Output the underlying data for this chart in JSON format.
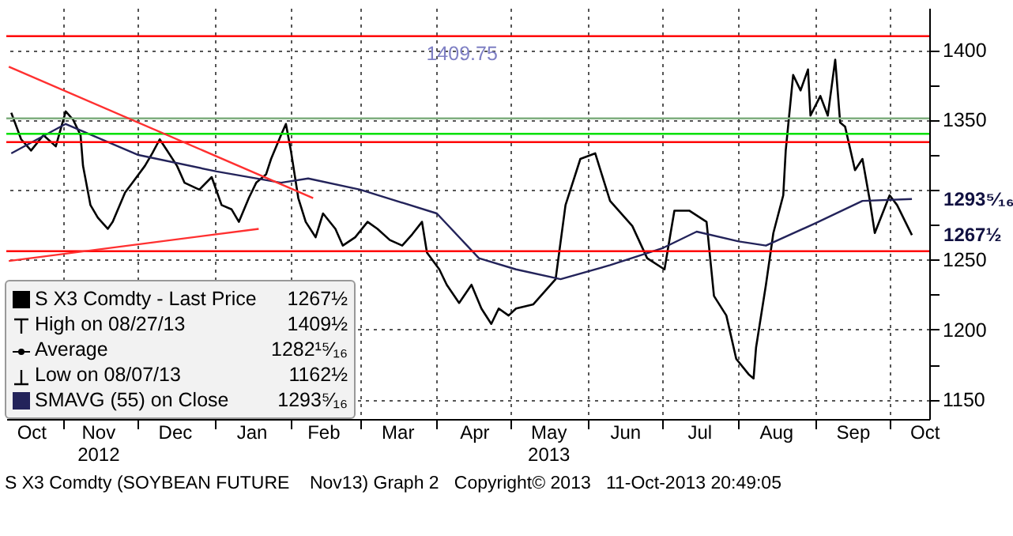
{
  "chart_data": {
    "type": "line",
    "xlim": [
      "2012-10-09",
      "2013-10-17"
    ],
    "xticks": [
      {
        "value": "2012-10-19",
        "label": "Oct"
      },
      {
        "value": "2012-11-01",
        "label": null
      },
      {
        "value": "2012-11-15",
        "label": "Nov\n2012"
      },
      {
        "value": "2012-12-01",
        "label": null
      },
      {
        "value": "2012-12-16",
        "label": "Dec"
      },
      {
        "value": "2013-01-01",
        "label": null
      },
      {
        "value": "2013-01-16",
        "label": "Jan"
      },
      {
        "value": "2013-02-01",
        "label": null
      },
      {
        "value": "2013-02-14",
        "label": "Feb"
      },
      {
        "value": "2013-03-01",
        "label": null
      },
      {
        "value": "2013-03-16",
        "label": "Mar"
      },
      {
        "value": "2013-04-01",
        "label": null
      },
      {
        "value": "2013-04-16",
        "label": "Apr"
      },
      {
        "value": "2013-05-01",
        "label": null
      },
      {
        "value": "2013-05-16",
        "label": "May\n2013"
      },
      {
        "value": "2013-06-01",
        "label": null
      },
      {
        "value": "2013-06-16",
        "label": "Jun"
      },
      {
        "value": "2013-07-01",
        "label": null
      },
      {
        "value": "2013-07-16",
        "label": "Jul"
      },
      {
        "value": "2013-08-01",
        "label": null
      },
      {
        "value": "2013-08-16",
        "label": "Aug"
      },
      {
        "value": "2013-09-01",
        "label": null
      },
      {
        "value": "2013-09-16",
        "label": "Sep"
      },
      {
        "value": "2013-10-01",
        "label": null
      },
      {
        "value": "2013-10-15",
        "label": "Oct"
      }
    ],
    "ylim": [
      1136,
      1430
    ],
    "yticks": [
      1150,
      {
        "value": 1175,
        "label": null
      },
      1200,
      {
        "value": 1225,
        "label": null
      },
      1250,
      {
        "value": 1275,
        "label": null
      },
      {
        "value": 1300,
        "label": null
      },
      {
        "value": 1325,
        "label": null
      },
      1350,
      {
        "value": 1375,
        "label": null
      },
      1400
    ],
    "grid": true,
    "legend": "bottom left",
    "series": [
      {
        "name": "S X3 Comdty - Last Price",
        "color": "#000000",
        "x": [
          "2012-10-11",
          "2012-10-15",
          "2012-10-19",
          "2012-10-24",
          "2012-10-29",
          "2012-11-02",
          "2012-11-05",
          "2012-11-08",
          "2012-11-09",
          "2012-11-12",
          "2012-11-15",
          "2012-11-19",
          "2012-11-21",
          "2012-11-26",
          "2012-11-29",
          "2012-12-04",
          "2012-12-07",
          "2012-12-10",
          "2012-12-13",
          "2012-12-17",
          "2012-12-20",
          "2012-12-26",
          "2012-12-31",
          "2013-01-04",
          "2013-01-08",
          "2013-01-11",
          "2013-01-15",
          "2013-01-18",
          "2013-01-22",
          "2013-01-24",
          "2013-01-28",
          "2013-01-30",
          "2013-02-01",
          "2013-02-04",
          "2013-02-07",
          "2013-02-11",
          "2013-02-14",
          "2013-02-19",
          "2013-02-22",
          "2013-02-27",
          "2013-03-04",
          "2013-03-08",
          "2013-03-13",
          "2013-03-18",
          "2013-03-22",
          "2013-03-26",
          "2013-03-28",
          "2013-04-02",
          "2013-04-05",
          "2013-04-10",
          "2013-04-15",
          "2013-04-19",
          "2013-04-23",
          "2013-04-26",
          "2013-04-30",
          "2013-05-03",
          "2013-05-10",
          "2013-05-19",
          "2013-05-23",
          "2013-05-29",
          "2013-06-04",
          "2013-06-10",
          "2013-06-19",
          "2013-06-25",
          "2013-07-02",
          "2013-07-06",
          "2013-07-12",
          "2013-07-19",
          "2013-07-22",
          "2013-07-27",
          "2013-07-31",
          "2013-08-05",
          "2013-08-07",
          "2013-08-08",
          "2013-08-12",
          "2013-08-15",
          "2013-08-19",
          "2013-08-20",
          "2013-08-23",
          "2013-08-26",
          "2013-08-29",
          "2013-08-30",
          "2013-09-03",
          "2013-09-06",
          "2013-09-09",
          "2013-09-11",
          "2013-09-13",
          "2013-09-17",
          "2013-09-20",
          "2013-09-23",
          "2013-09-25",
          "2013-10-01",
          "2013-10-04",
          "2013-10-10"
        ],
        "values": [
          1355,
          1336,
          1328,
          1339,
          1331,
          1356,
          1350,
          1339,
          1317,
          1289,
          1280,
          1272,
          1277,
          1298,
          1305,
          1317,
          1326,
          1336,
          1328,
          1317,
          1305,
          1300,
          1309,
          1289,
          1286,
          1277,
          1294,
          1305,
          1311,
          1322,
          1339,
          1347,
          1328,
          1294,
          1277,
          1266,
          1283,
          1272,
          1260,
          1266,
          1277,
          1272,
          1264,
          1260,
          1268,
          1277,
          1255,
          1243,
          1232,
          1219,
          1232,
          1215,
          1204,
          1215,
          1210,
          1215,
          1218,
          1236,
          1289,
          1322,
          1326,
          1292,
          1274,
          1251,
          1243,
          1285,
          1285,
          1277,
          1224,
          1210,
          1179,
          1168,
          1165,
          1187,
          1232,
          1269,
          1296,
          1328,
          1382,
          1371,
          1386,
          1353,
          1367,
          1353,
          1393,
          1348,
          1345,
          1314,
          1322,
          1292,
          1269,
          1296,
          1289,
          1267.5
        ]
      },
      {
        "name": "SMAVG (55) on Close",
        "color": "#23235a",
        "x": [
          "2012-10-11",
          "2012-11-02",
          "2012-12-01",
          "2013-01-02",
          "2013-01-28",
          "2013-02-08",
          "2013-03-01",
          "2013-04-01",
          "2013-04-18",
          "2013-05-03",
          "2013-05-21",
          "2013-06-10",
          "2013-07-01",
          "2013-07-15",
          "2013-08-01",
          "2013-08-12",
          "2013-09-01",
          "2013-09-20",
          "2013-10-10"
        ],
        "values": [
          1326,
          1347,
          1325,
          1313,
          1305,
          1308,
          1300,
          1283,
          1251,
          1243,
          1236,
          1246,
          1258,
          1270,
          1263,
          1260,
          1276,
          1292,
          1293.3
        ]
      },
      {
        "color": "#ff3030",
        "x": [
          "2012-10-10",
          "2013-02-10"
        ],
        "values": [
          1388,
          1294
        ]
      },
      {
        "color": "#ff3030",
        "x": [
          "2012-10-10",
          "2013-01-19"
        ],
        "values": [
          1249,
          1272
        ]
      }
    ],
    "ref_lines": [
      {
        "axis": "y",
        "value": 1409.75,
        "label": "1409.75",
        "color": "#ff0000"
      },
      {
        "axis": "y",
        "value": 1351,
        "color": "#7fae7f"
      },
      {
        "axis": "y",
        "value": 1340,
        "color": "#00e000"
      },
      {
        "axis": "y",
        "value": 1334,
        "color": "#ff0000"
      },
      {
        "axis": "y",
        "value": 1256,
        "color": "#ff0000"
      }
    ],
    "annotations": [
      "1267½",
      "High on 08/27/13",
      "1409½",
      "Average",
      "1282¹⁵⁄₁₆",
      "Low on 08/07/13",
      "1162½",
      "1293⁵⁄₁₆",
      "S X3 Comdty (SOYBEAN FUTURE    Nov13) Graph 2   Copyright© 2013   11-Oct-2013 20:49:05",
      {
        "text": "1293⁵⁄₁₆",
        "x": "2013-10-10",
        "y": 1293.3
      },
      {
        "text": "1267½",
        "x": "2013-10-10",
        "y": 1267.5
      }
    ]
  }
}
